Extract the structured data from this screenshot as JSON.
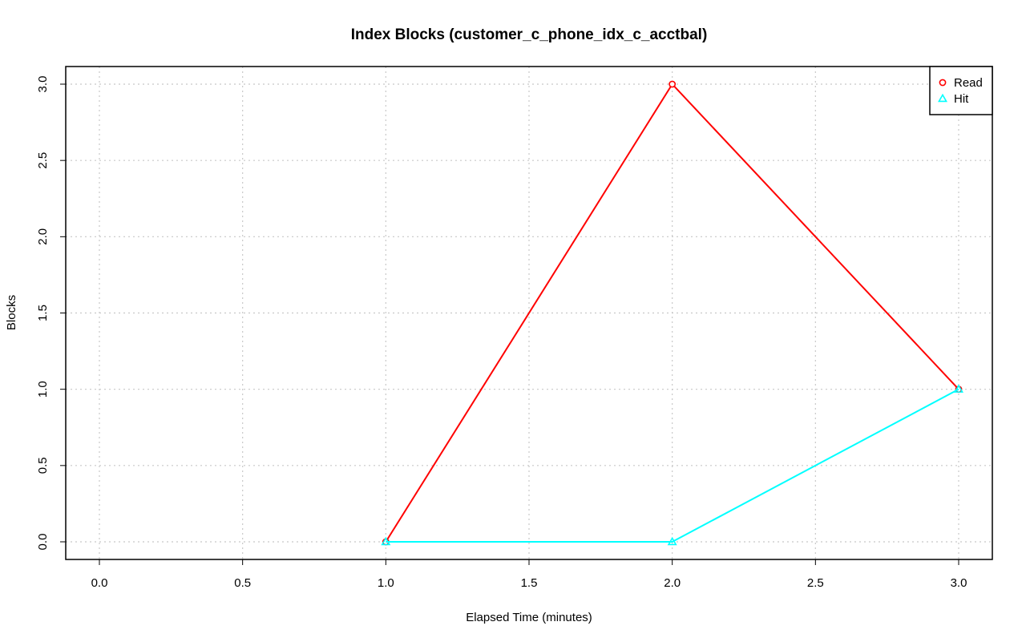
{
  "chart_data": {
    "type": "line",
    "title": "Index Blocks (customer_c_phone_idx_c_acctbal)",
    "xlabel": "Elapsed Time (minutes)",
    "ylabel": "Blocks",
    "xlim": [
      0,
      3
    ],
    "ylim": [
      0,
      3
    ],
    "xticks": [
      "0.0",
      "0.5",
      "1.0",
      "1.5",
      "2.0",
      "2.5",
      "3.0"
    ],
    "yticks": [
      "0.0",
      "0.5",
      "1.0",
      "1.5",
      "2.0",
      "2.5",
      "3.0"
    ],
    "grid": true,
    "legend_position": "top-right",
    "series": [
      {
        "name": "Read",
        "x": [
          1,
          2,
          3
        ],
        "values": [
          0,
          3,
          1
        ],
        "color": "#ff0000",
        "marker": "circle"
      },
      {
        "name": "Hit",
        "x": [
          1,
          2,
          3
        ],
        "values": [
          0,
          0,
          1
        ],
        "color": "#00ffff",
        "marker": "triangle"
      }
    ]
  }
}
